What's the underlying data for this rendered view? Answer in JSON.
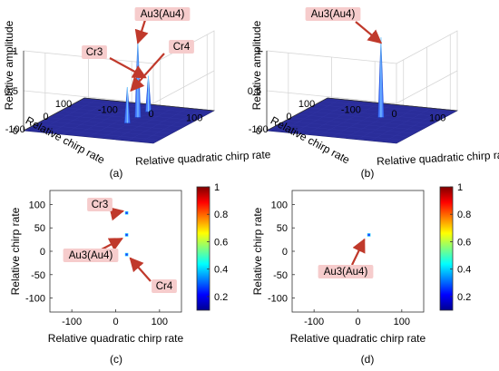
{
  "chart_data": [
    {
      "panel": "(a)",
      "type": "surface3d",
      "xlabel": "Relative quadratic chirp rate",
      "ylabel": "Relative chirp rate",
      "zlabel": "Relative amplitude",
      "xticks": [
        "-100",
        "0",
        "100"
      ],
      "yticks": [
        "100",
        "0",
        "-100"
      ],
      "zticks": [
        "0",
        "0.5",
        "1"
      ],
      "zlim": [
        0,
        1
      ],
      "peaks": [
        {
          "label": "Au3(Au4)",
          "x": 25,
          "y": 35,
          "z": 1.0
        },
        {
          "label": "Cr3",
          "x": 25,
          "y": 80,
          "z": 0.45
        },
        {
          "label": "Cr4",
          "x": 25,
          "y": -10,
          "z": 0.45
        }
      ]
    },
    {
      "panel": "(b)",
      "type": "surface3d",
      "xlabel": "Relative quadratic chirp rate",
      "ylabel": "Relative chirp rate",
      "zlabel": "Relative amplitude",
      "xticks": [
        "-100",
        "0",
        "100"
      ],
      "yticks": [
        "100",
        "0",
        "-100"
      ],
      "zticks": [
        "0",
        "0.5",
        "1"
      ],
      "zlim": [
        0,
        1
      ],
      "peaks": [
        {
          "label": "Au3(Au4)",
          "x": 25,
          "y": 35,
          "z": 1.0
        }
      ]
    },
    {
      "panel": "(c)",
      "type": "heatmap",
      "xlabel": "Relative quadratic chirp rate",
      "ylabel": "Relative chirp rate",
      "xticks": [
        "-100",
        "0",
        "100"
      ],
      "yticks": [
        "100",
        "50",
        "0",
        "-50",
        "-100"
      ],
      "xlim": [
        -150,
        150
      ],
      "ylim": [
        -130,
        130
      ],
      "colorbar_ticks": [
        "1",
        "0.8",
        "0.6",
        "0.4",
        "0.2"
      ],
      "points": [
        {
          "label": "Cr3",
          "x": 25,
          "y": 82
        },
        {
          "label": "Au3(Au4)",
          "x": 25,
          "y": 35
        },
        {
          "label": "Cr4",
          "x": 25,
          "y": -7
        }
      ]
    },
    {
      "panel": "(d)",
      "type": "heatmap",
      "xlabel": "Relative quadratic chirp rate",
      "ylabel": "Relative chirp rate",
      "xticks": [
        "-100",
        "0",
        "100"
      ],
      "yticks": [
        "100",
        "50",
        "0",
        "-50",
        "-100"
      ],
      "xlim": [
        -150,
        150
      ],
      "ylim": [
        -130,
        130
      ],
      "colorbar_ticks": [
        "1",
        "0.8",
        "0.6",
        "0.4",
        "0.2"
      ],
      "points": [
        {
          "label": "Au3(Au4)",
          "x": 25,
          "y": 35
        }
      ]
    }
  ]
}
